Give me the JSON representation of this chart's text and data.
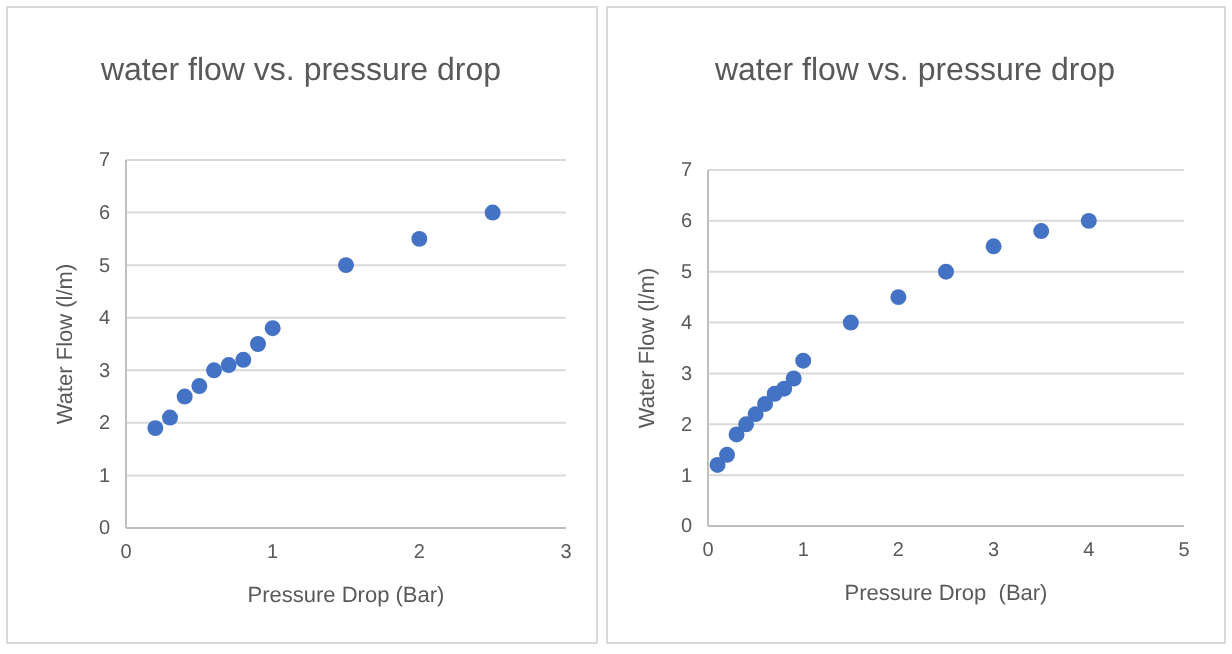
{
  "chart_data": [
    {
      "type": "scatter",
      "title": "water flow vs. pressure drop",
      "xlabel": "Pressure Drop (Bar)",
      "ylabel": "Water Flow (l/m)",
      "x": [
        0.2,
        0.3,
        0.4,
        0.5,
        0.6,
        0.7,
        0.8,
        0.9,
        1,
        1.5,
        2,
        2.5
      ],
      "series": [
        {
          "color": "#4472c4",
          "values": [
            1.9,
            2.1,
            2.5,
            2.7,
            3.0,
            3.1,
            3.2,
            3.5,
            3.8,
            5.0,
            5.5,
            6.0
          ]
        }
      ],
      "xlim": [
        0,
        3
      ],
      "xticks": [
        0,
        1,
        2,
        3
      ],
      "ylim": [
        0,
        7
      ],
      "yticks": [
        0,
        1,
        2,
        3,
        4,
        5,
        6,
        7
      ],
      "grid": "y",
      "marker": "circle"
    },
    {
      "type": "scatter",
      "title": "water flow vs. pressure drop",
      "xlabel": "Pressure Drop  (Bar)",
      "ylabel": "Water Flow (l/m)",
      "x": [
        0.1,
        0.2,
        0.3,
        0.4,
        0.5,
        0.6,
        0.7,
        0.8,
        0.9,
        1,
        1.5,
        2,
        2.5,
        3,
        3.5,
        4
      ],
      "series": [
        {
          "color": "#4472c4",
          "values": [
            1.2,
            1.4,
            1.8,
            2.0,
            2.2,
            2.4,
            2.6,
            2.7,
            2.9,
            3.25,
            4.0,
            4.5,
            5.0,
            5.5,
            5.8,
            6.0
          ]
        }
      ],
      "xlim": [
        0,
        5
      ],
      "xticks": [
        0,
        1,
        2,
        3,
        4,
        5
      ],
      "ylim": [
        0,
        7
      ],
      "yticks": [
        0,
        1,
        2,
        3,
        4,
        5,
        6,
        7
      ],
      "grid": "y",
      "marker": "circle"
    }
  ]
}
